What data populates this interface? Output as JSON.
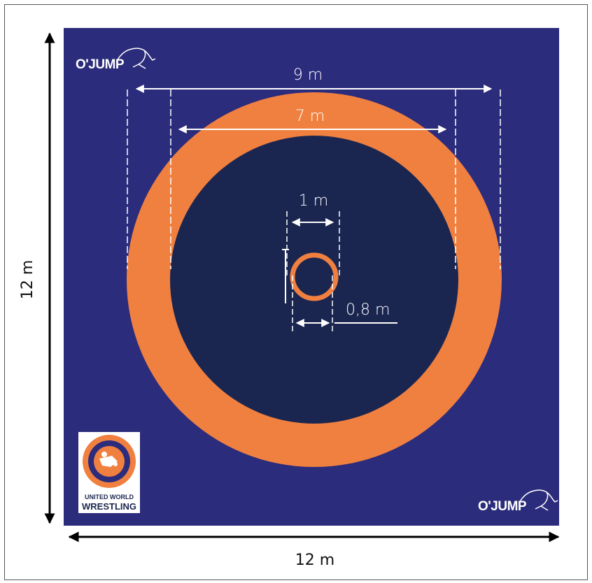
{
  "diagram": {
    "labels": {
      "width_9m": "9 m",
      "width_7m": "7 m",
      "inner_1m": "1 m",
      "inner_08m": "0,8 m",
      "side_height": "12 m",
      "side_width": "12 m"
    },
    "logos": {
      "brand_top": "O'JUMP",
      "brand_bottom": "O'JUMP",
      "uww_line1": "UNITED WORLD",
      "uww_line2": "WRESTLING"
    },
    "colors": {
      "mat_blue": "#2c2c7c",
      "center_navy": "#1b2650",
      "orange": "#f08040",
      "white": "#ffffff"
    }
  }
}
